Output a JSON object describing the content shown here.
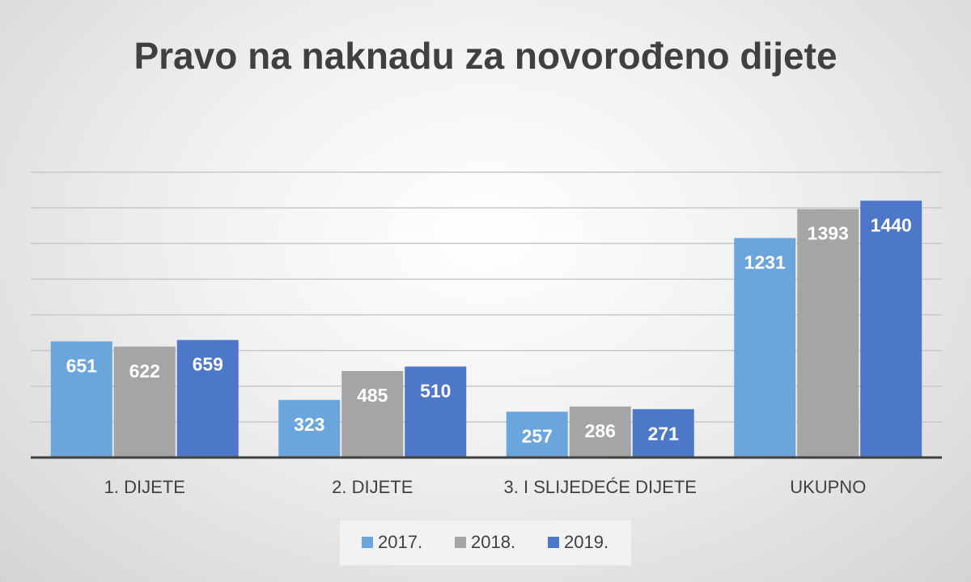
{
  "chart_data": {
    "type": "bar",
    "title": "Pravo na naknadu za novorođeno dijete",
    "categories": [
      "1. DIJETE",
      "2. DIJETE",
      "3. I SLIJEDEĆE DIJETE",
      "UKUPNO"
    ],
    "series": [
      {
        "name": "2017.",
        "color": "#6aa5dc",
        "values": [
          651,
          323,
          257,
          1231
        ]
      },
      {
        "name": "2018.",
        "color": "#a5a5a5",
        "values": [
          622,
          485,
          286,
          1393
        ]
      },
      {
        "name": "2019.",
        "color": "#4d77c8",
        "values": [
          659,
          510,
          271,
          1440
        ]
      }
    ],
    "ylim": [
      0,
      1600
    ],
    "yticks": [
      0,
      200,
      400,
      600,
      800,
      1000,
      1200,
      1400,
      1600
    ],
    "ytick_labels": false,
    "grid": true,
    "data_labels": true,
    "legend": "bottom"
  }
}
